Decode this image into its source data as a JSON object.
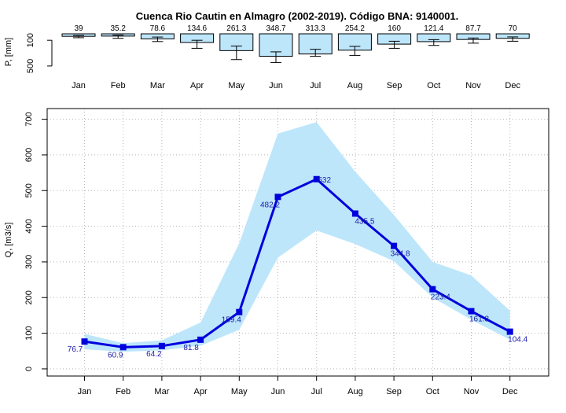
{
  "chart_data": [
    {
      "type": "bar",
      "title": "Cuenca Rio Cautin en Almagro (2002-2019). Código BNA: 9140001.",
      "ylabel": "P, [mm]",
      "categories": [
        "Jan",
        "Feb",
        "Mar",
        "Apr",
        "May",
        "Jun",
        "Jul",
        "Aug",
        "Sep",
        "Oct",
        "Nov",
        "Dec"
      ],
      "values": [
        39,
        35.2,
        78.6,
        134.6,
        261.3,
        348.7,
        313.3,
        254.2,
        160,
        121.4,
        87.7,
        70
      ],
      "value_labels": [
        "39",
        "35.2",
        "78.6",
        "134.6",
        "261.3",
        "348.7",
        "313.3",
        "254.2",
        "160",
        "121.4",
        "87.7",
        "70"
      ],
      "error_low": [
        25,
        20,
        50,
        100,
        190,
        280,
        240,
        195,
        115,
        90,
        65,
        48
      ],
      "error_high": [
        60,
        70,
        120,
        225,
        400,
        445,
        350,
        335,
        225,
        180,
        145,
        115
      ],
      "yticks": [
        100,
        500
      ],
      "ylim": [
        0,
        550
      ],
      "y_reversed": true,
      "colors": {
        "fill": "#bde6fb",
        "stroke": "#000000"
      }
    },
    {
      "type": "line",
      "ylabel": "Q, [m3/s]",
      "categories": [
        "Jan",
        "Feb",
        "Mar",
        "Apr",
        "May",
        "Jun",
        "Jul",
        "Aug",
        "Sep",
        "Oct",
        "Nov",
        "Dec"
      ],
      "values": [
        76.7,
        60.9,
        64.2,
        81.8,
        159.4,
        482.2,
        532,
        435.5,
        344.8,
        223.4,
        161.8,
        104.4
      ],
      "value_labels": [
        "76.7",
        "60.9",
        "64.2",
        "81.8",
        "159.4",
        "482.2",
        "532",
        "435.5",
        "344.8",
        "223.4",
        "161.8",
        "104.4"
      ],
      "band_low": [
        55,
        48,
        52,
        65,
        110,
        312,
        388,
        350,
        302,
        200,
        138,
        82
      ],
      "band_high": [
        98,
        72,
        80,
        130,
        352,
        660,
        692,
        553,
        432,
        300,
        262,
        163
      ],
      "ylim": [
        -20,
        730
      ],
      "yticks": [
        0,
        100,
        200,
        300,
        400,
        500,
        600,
        700
      ],
      "grid": true,
      "colors": {
        "line": "#0000dd",
        "band": "#bde6fb",
        "label": "#1a1aaa",
        "grid": "#b5b5b5"
      }
    }
  ]
}
